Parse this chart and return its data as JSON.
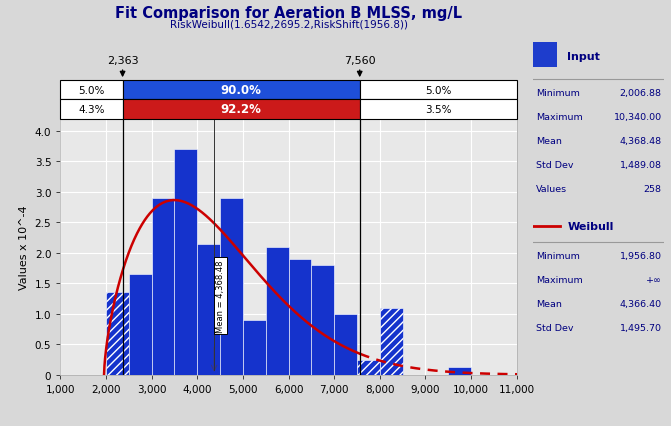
{
  "title": "Fit Comparison for Aeration B MLSS, mg/L",
  "subtitle": "RiskWeibull(1.6542,2695.2,RiskShift(1956.8))",
  "ylabel": "Values x 10^-4",
  "xlim": [
    1000,
    11000
  ],
  "ylim": [
    0,
    4.2
  ],
  "xticks": [
    1000,
    2000,
    3000,
    4000,
    5000,
    6000,
    7000,
    8000,
    9000,
    10000,
    11000
  ],
  "yticks": [
    0,
    0.5,
    1.0,
    1.5,
    2.0,
    2.5,
    3.0,
    3.5,
    4.0
  ],
  "bar_edges": [
    1000,
    1500,
    2000,
    2500,
    3000,
    3500,
    4000,
    4500,
    5000,
    5500,
    6000,
    6500,
    7000,
    7500,
    8000,
    8500,
    9000,
    9500,
    10000,
    10500,
    11000
  ],
  "bar_heights": [
    0,
    0,
    1.35,
    1.65,
    2.9,
    3.7,
    2.15,
    2.9,
    0.9,
    2.1,
    1.9,
    1.8,
    1.0,
    0.25,
    1.1,
    0.0,
    0.0,
    0.12,
    0.0,
    0.0
  ],
  "hatch_bars": [
    2,
    13,
    14
  ],
  "marker_x": 4368.48,
  "marker_label": "Mean = 4,368.48",
  "p5_x": 2363,
  "p95_x": 7560,
  "p5_label": "2,363",
  "p95_label": "7,560",
  "row1_left_pct": "5.0%",
  "row1_mid_pct": "90.0%",
  "row1_right_pct": "5.0%",
  "row2_left_pct": "4.3%",
  "row2_mid_pct": "92.2%",
  "row2_right_pct": "3.5%",
  "weibull_shape": 1.6542,
  "weibull_scale": 2695.2,
  "weibull_shift": 1956.8,
  "bar_color": "#1533cc",
  "curve_color": "#cc0000",
  "row1_mid_color": "#1e4fd8",
  "row2_mid_color": "#cc1a1a",
  "legend_input_color": "#1e3dcc",
  "bg_color": "#d8d8d8",
  "plot_bg_color": "#e8e8e8",
  "title_color": "#000080",
  "input_stats": {
    "Minimum": "2,006.88",
    "Maximum": "10,340.00",
    "Mean": "4,368.48",
    "Std Dev": "1,489.08",
    "Values": "258"
  },
  "weibull_stats": {
    "Minimum": "1,956.80",
    "Maximum": "+∞",
    "Mean": "4,366.40",
    "Std Dev": "1,495.70"
  }
}
